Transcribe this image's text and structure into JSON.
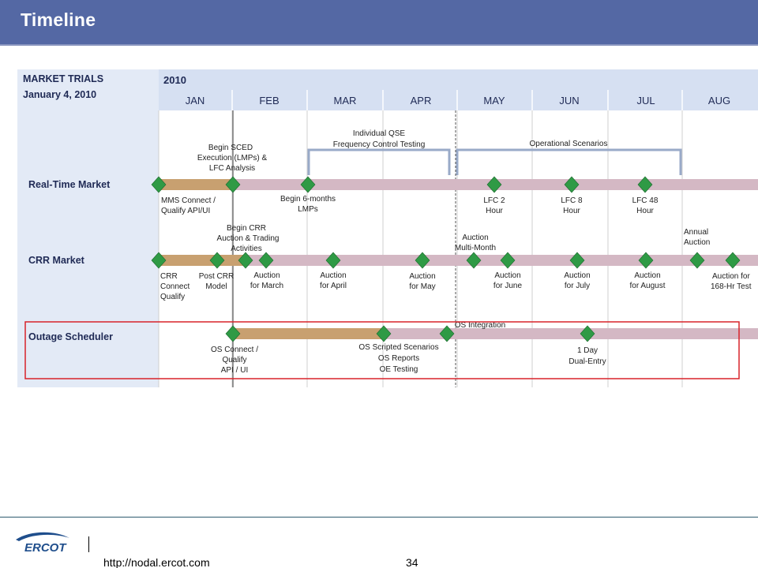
{
  "slide": {
    "title": "Timeline"
  },
  "trials": {
    "heading": "MARKET TRIALS",
    "date": "January 4, 2010",
    "year": "2010"
  },
  "months": [
    "JAN",
    "FEB",
    "MAR",
    "APR",
    "MAY",
    "JUN",
    "JUL",
    "AUG"
  ],
  "rows": {
    "rtm": "Real-Time Market",
    "crr": "CRR Market",
    "os": "Outage Scheduler"
  },
  "brackets": {
    "qse": [
      "Individual QSE",
      "Frequency Control Testing"
    ],
    "ops": [
      "Operational Scenarios"
    ]
  },
  "rtm": {
    "sced": [
      "Begin SCED",
      "Execution (LMPs) &",
      "LFC Analysis"
    ],
    "mms": [
      "MMS Connect /",
      "Qualify API/UI"
    ],
    "lmps": [
      "Begin 6-months",
      "LMPs"
    ],
    "lfc2": [
      "LFC 2",
      "Hour"
    ],
    "lfc8": [
      "LFC 8",
      "Hour"
    ],
    "lfc48": [
      "LFC 48",
      "Hour"
    ]
  },
  "crr": {
    "begin": [
      "Begin CRR",
      "Auction & Trading",
      "Activities"
    ],
    "multi": [
      "Auction",
      "Multi-Month"
    ],
    "annual": [
      "Annual",
      "Auction"
    ],
    "connect": [
      "CRR",
      "Connect",
      "Qualify"
    ],
    "post": [
      "Post CRR",
      "Model"
    ],
    "march": [
      "Auction",
      "for March"
    ],
    "april": [
      "Auction",
      "for April"
    ],
    "may": [
      "Auction",
      "for May"
    ],
    "june": [
      "Auction",
      "for June"
    ],
    "july": [
      "Auction",
      "for July"
    ],
    "august": [
      "Auction",
      "for August"
    ],
    "hr168": [
      "Auction for",
      "168-Hr Test"
    ]
  },
  "os": {
    "integration": "OS Integration",
    "connect": [
      "OS Connect /",
      "Qualify",
      "API / UI"
    ],
    "scripted": [
      "OS Scripted Scenarios",
      "OS Reports",
      "OE Testing"
    ],
    "dual": [
      "1 Day",
      "Dual-Entry"
    ]
  },
  "footer": {
    "url": "http://nodal.ercot.com",
    "page": "34",
    "logo": "ERCOT"
  },
  "colors": {
    "title_bar": "#5468a4",
    "header_band": "#d6e0f2",
    "completed_bar": "#c8a070",
    "remaining_bar": "#d4b8c4",
    "milestone": "#2f9a45",
    "bracket": "#99aac8",
    "highlight_box": "#d8232a",
    "logo_blue": "#1f4e8c"
  }
}
